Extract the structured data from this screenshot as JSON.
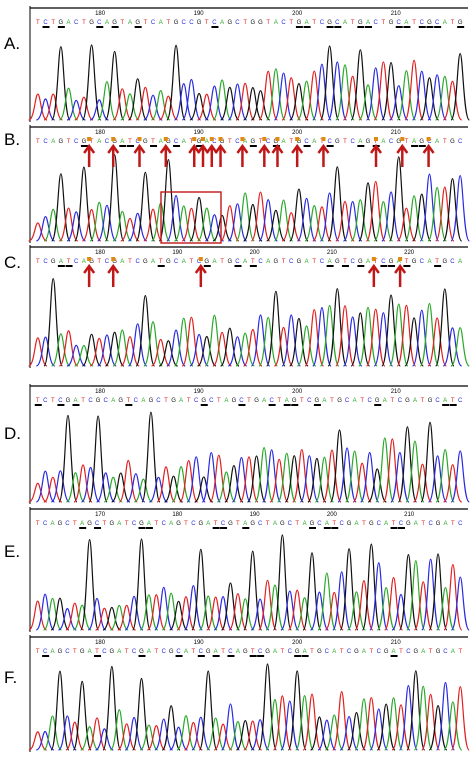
{
  "colors": {
    "A": "#2aa82a",
    "C": "#2a2ae0",
    "G": "#111111",
    "T": "#e02020",
    "arrow": "#c01818",
    "marker": "#e08a10"
  },
  "panels": [
    {
      "label": "A.",
      "ticks": [
        "180",
        "190",
        "200",
        "210"
      ],
      "seq": "TCTGACTGCAGTAGTCATGCCGTCAGCTGGTACTGATCGCATGACTGCATCGCATG",
      "arrows": [],
      "box": false
    },
    {
      "label": "B.",
      "ticks": [
        "180",
        "190",
        "200",
        "210"
      ],
      "seq": "TCAGTCGTACGATCGTAGCATGACGTCAGTCGATGCATCGTCAGTACGTAGCATGC",
      "arrows": [
        0.135,
        0.19,
        0.25,
        0.31,
        0.375,
        0.395,
        0.415,
        0.435,
        0.485,
        0.535,
        0.565,
        0.61,
        0.67,
        0.79,
        0.85,
        0.91
      ],
      "box": true
    },
    {
      "label": "C.",
      "ticks": [
        "180",
        "190",
        "200",
        "210",
        "220"
      ],
      "seq": "TCGATCAGTCGATCGATGCATCGATGCATCAGTCGATCAGTCGATCGATGCATGCA",
      "arrows": [
        0.135,
        0.19,
        0.39,
        0.785,
        0.845
      ],
      "box": false
    },
    {
      "label": "D.",
      "ticks": [
        "180",
        "190",
        "200",
        "210"
      ],
      "seq": "TCTCGATCGCAGTCAGCTGATCGCTAGCTGACTAGTCGATGCATCGATCGATGCATC",
      "arrows": [],
      "box": false
    },
    {
      "label": "E.",
      "ticks": [
        "170",
        "180",
        "190",
        "200",
        "210"
      ],
      "seq": "TCAGCTAGCTGATCGATCAGTCGATCGTAGCTAGCTAGCATCGATGCATCGATCGATC",
      "arrows": [],
      "box": false
    },
    {
      "label": "F.",
      "ticks": [
        "180",
        "190",
        "200",
        "210"
      ],
      "seq": "TCAGCTGATCGATCGATCGCATCGATCAGTCGATCGATGCATCGATCGATCGATGCAT",
      "arrows": [],
      "box": false
    }
  ]
}
